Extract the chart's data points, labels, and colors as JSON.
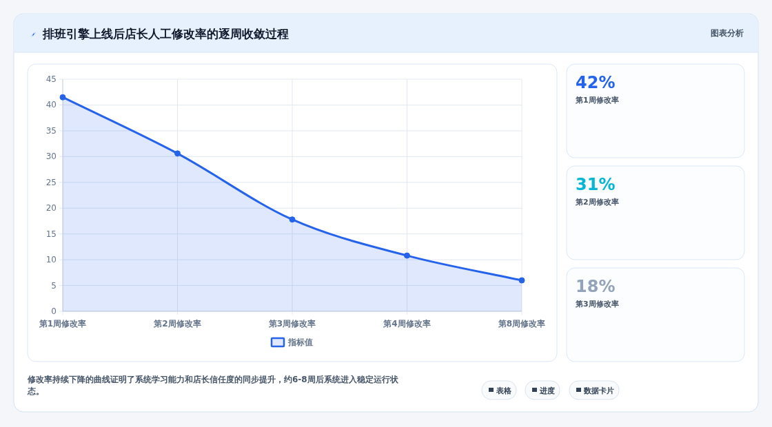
{
  "chart_data": [
    {
      "type": "area",
      "title": "排班引擎上线后店长人工修改率的逐周收敛过程",
      "categories": [
        "第1周修改率",
        "第2周修改率",
        "第3周修改率",
        "第4周修改率",
        "第8周修改率"
      ],
      "series": [
        {
          "name": "指标值",
          "color": "#2563eb",
          "values": [
            41.5,
            30.6,
            17.8,
            10.8,
            6.0
          ]
        }
      ],
      "ylim": [
        0,
        45
      ],
      "yticks": [
        0,
        5,
        10,
        15,
        20,
        25,
        30,
        35,
        40,
        45
      ],
      "grid": true,
      "legend": "bottom",
      "marker": "circle",
      "line_style": "solid",
      "annotations": [
        "图表分析",
        "修改率持续下降的曲线证明了系统学习能力和店长信任度的同步提升，约6-8周后系统进入稳定运行状态。",
        "表格",
        "进度",
        "数据卡片"
      ]
    },
    {
      "type": "other",
      "annotations": [
        "42%",
        "第1周修改率",
        "31%",
        "第2周修改率",
        "18%",
        "第3周修改率"
      ]
    }
  ]
}
